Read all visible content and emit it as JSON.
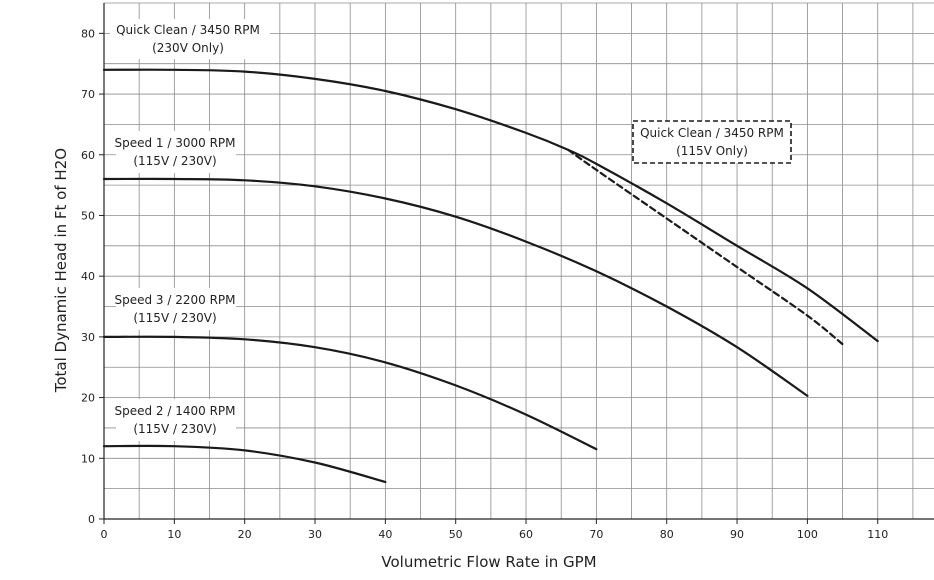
{
  "chart_data": {
    "type": "line",
    "title": "",
    "xlabel": "Volumetric Flow Rate in GPM",
    "ylabel": "Total Dynamic Head in Ft of H2O",
    "xlim": [
      0,
      118
    ],
    "ylim": [
      0,
      85
    ],
    "xticks": [
      0,
      10,
      20,
      30,
      40,
      50,
      60,
      70,
      80,
      90,
      100,
      110
    ],
    "yticks": [
      0,
      10,
      20,
      30,
      40,
      50,
      60,
      70,
      80
    ],
    "grid": true,
    "series": [
      {
        "name": "Quick Clean / 3450 RPM (230V Only)",
        "label_lines": [
          "Quick Clean / 3450 RPM",
          "(230V Only)"
        ],
        "style": "solid",
        "x": [
          0,
          10,
          20,
          30,
          40,
          50,
          60,
          66,
          70,
          80,
          90,
          100,
          110
        ],
        "y": [
          74,
          74,
          73.7,
          72.5,
          70.5,
          67.5,
          63.6,
          60.8,
          58.5,
          52,
          45,
          38,
          29.3
        ]
      },
      {
        "name": "Quick Clean / 3450 RPM (115V Only)",
        "label_lines": [
          "Quick Clean / 3450 RPM",
          "(115V Only)"
        ],
        "style": "dashed",
        "x": [
          66,
          70,
          80,
          90,
          100,
          105
        ],
        "y": [
          60.8,
          57.5,
          49.5,
          41.5,
          33.5,
          28.8
        ]
      },
      {
        "name": "Speed 1 / 3000 RPM (115V / 230V)",
        "label_lines": [
          "Speed 1 / 3000 RPM",
          "(115V / 230V)"
        ],
        "style": "solid",
        "x": [
          0,
          10,
          20,
          30,
          40,
          50,
          60,
          70,
          80,
          90,
          100
        ],
        "y": [
          56,
          56,
          55.8,
          54.8,
          52.8,
          49.8,
          45.7,
          40.8,
          35,
          28.3,
          20.3
        ]
      },
      {
        "name": "Speed 3 / 2200 RPM (115V / 230V)",
        "label_lines": [
          "Speed 3 / 2200 RPM",
          "(115V / 230V)"
        ],
        "style": "solid",
        "x": [
          0,
          10,
          20,
          30,
          40,
          50,
          60,
          70
        ],
        "y": [
          30,
          30,
          29.6,
          28.3,
          25.8,
          22,
          17.2,
          11.5
        ]
      },
      {
        "name": "Speed 2 / 1400 RPM (115V / 230V)",
        "label_lines": [
          "Speed 2 / 1400 RPM",
          "(115V / 230V)"
        ],
        "style": "solid",
        "x": [
          0,
          10,
          20,
          30,
          40
        ],
        "y": [
          12,
          12,
          11.3,
          9.3,
          6.1
        ]
      }
    ]
  }
}
